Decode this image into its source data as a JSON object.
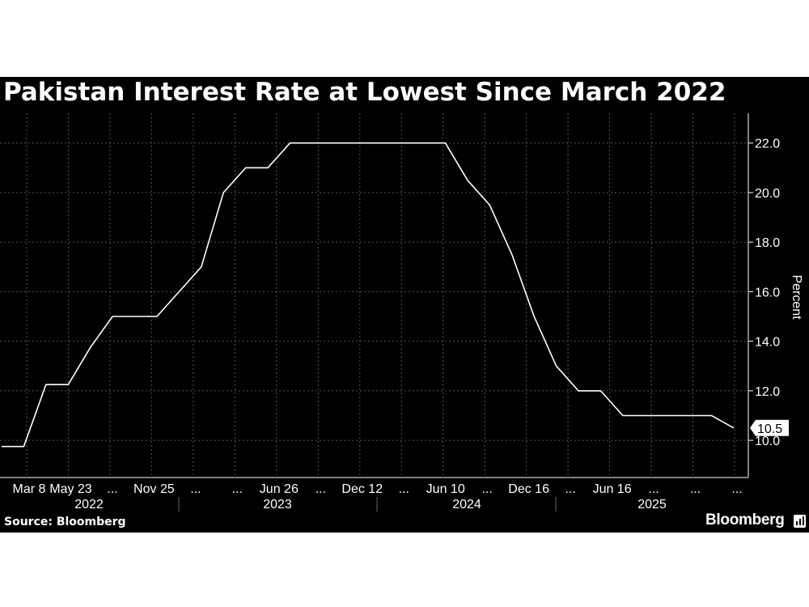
{
  "title": "Pakistan Interest Rate at Lowest Since March 2022",
  "source": "Source: Bloomberg",
  "brand": "Bloomberg",
  "colors": {
    "background": "#000000",
    "line": "#ffffff",
    "grid": "#555555",
    "text": "#ffffff"
  },
  "chart_data": {
    "type": "line",
    "title": "Pakistan Interest Rate at Lowest Since March 2022",
    "ylabel": "Percent",
    "ylim": [
      8.5,
      23.2
    ],
    "yticks": [
      "10.0",
      "12.0",
      "14.0",
      "16.0",
      "18.0",
      "20.0",
      "22.0"
    ],
    "xticks": [
      "Mar 8",
      "May 23",
      "...",
      "Nov 25",
      "...",
      "...",
      "Jun 26",
      "...",
      "Dec 12",
      "...",
      "Jun 10",
      "...",
      "Dec 16",
      "...",
      "Jun 16",
      "...",
      "...",
      "..."
    ],
    "year_labels": [
      "2022",
      "2023",
      "2024",
      "2025"
    ],
    "last_value_label": "10.5",
    "grid": true,
    "series": [
      {
        "values": [
          9.75,
          9.75,
          12.25,
          12.25,
          13.75,
          15.0,
          15.0,
          15.0,
          16.0,
          17.0,
          20.0,
          21.0,
          21.0,
          22.0,
          22.0,
          22.0,
          22.0,
          22.0,
          22.0,
          22.0,
          22.0,
          20.5,
          19.5,
          17.5,
          15.0,
          13.0,
          12.0,
          12.0,
          11.0,
          11.0,
          11.0,
          11.0,
          11.0,
          10.5
        ]
      }
    ]
  }
}
